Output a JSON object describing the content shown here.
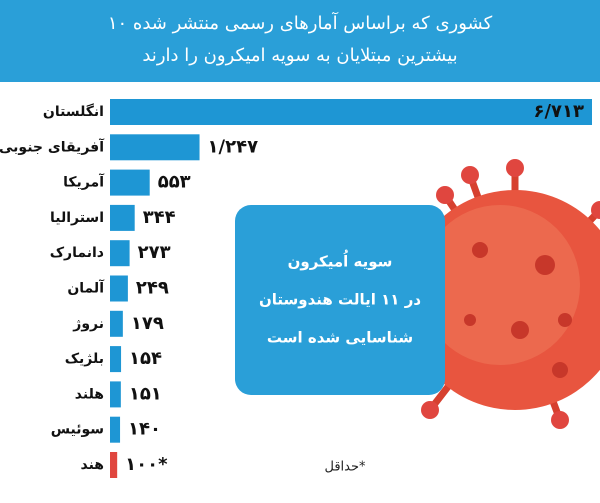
{
  "chart_data": {
    "type": "bar",
    "title": "۱۰ کشوری که براساس آمارهای رسمی منتشر شده",
    "subtitle": "بیشترین مبتلایان به سویه امیکرون را دارند",
    "categories": [
      "انگلستان",
      "آفریقای جنوبی",
      "آمریکا",
      "استرالیا",
      "دانمارک",
      "آلمان",
      "نروژ",
      "بلژیک",
      "هلند",
      "سوئیس",
      "هند"
    ],
    "values": [
      6713,
      1247,
      553,
      344,
      273,
      249,
      179,
      154,
      151,
      140,
      100
    ],
    "value_labels": [
      "۶/۷۱۳",
      "۱/۲۴۷",
      "۵۵۳",
      "۳۴۴",
      "۲۷۳",
      "۲۴۹",
      "۱۷۹",
      "۱۵۴",
      "۱۵۱",
      "۱۴۰",
      "۱۰۰*"
    ],
    "colors": [
      "#1e96d4",
      "#1e96d4",
      "#1e96d4",
      "#1e96d4",
      "#1e96d4",
      "#1e96d4",
      "#1e96d4",
      "#1e96d4",
      "#1e96d4",
      "#1e96d4",
      "#e0463f"
    ],
    "annotation": [
      "سویه اُمیکرون",
      "در ۱۱ ایالت هندوستان",
      "شناسایی شده است"
    ],
    "footnote": "حداقل*"
  }
}
